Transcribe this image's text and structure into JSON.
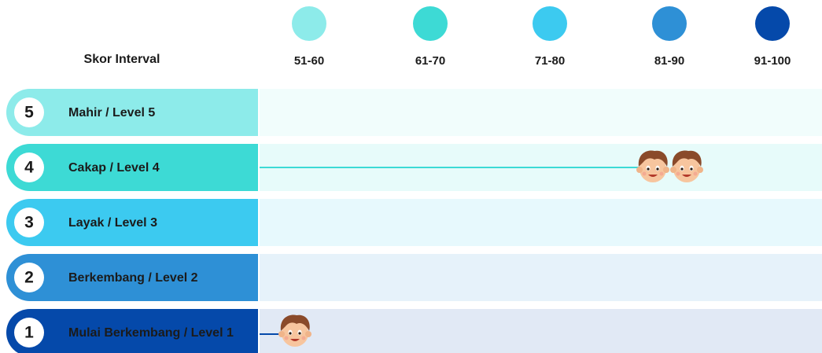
{
  "header": {
    "label": "Skor Interval"
  },
  "intervals": [
    {
      "label": "51-60",
      "color": "#8debea"
    },
    {
      "label": "61-70",
      "color": "#3ddad5"
    },
    {
      "label": "71-80",
      "color": "#3ccaf0"
    },
    {
      "label": "81-90",
      "color": "#2e90d6"
    },
    {
      "label": "91-100",
      "color": "#0549aa"
    }
  ],
  "levels": [
    {
      "number": "5",
      "label": "Mahir / Level 5",
      "color": "#8debea"
    },
    {
      "number": "4",
      "label": "Cakap / Level 4",
      "color": "#3ddad5"
    },
    {
      "number": "3",
      "label": "Layak / Level 3",
      "color": "#3ccaf0"
    },
    {
      "number": "2",
      "label": "Berkembang / Level 2",
      "color": "#2e90d6"
    },
    {
      "number": "1",
      "label": "Mulai Berkembang / Level 1",
      "color": "#0549aa"
    }
  ]
}
